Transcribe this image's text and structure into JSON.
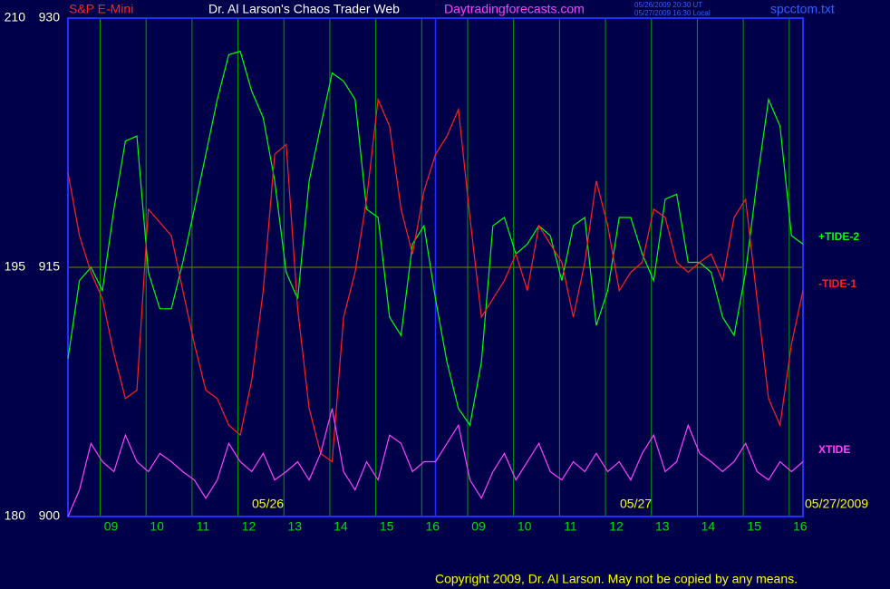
{
  "chart_data": {
    "type": "line",
    "instrument": "S&P E-Mini",
    "title": "Dr. Al Larson's Chaos Trader Web",
    "website": "Daytradingforecasts.com",
    "timestamps": [
      "05/26/2009 20:30 UT",
      "05/27/2009 16:30 Local"
    ],
    "filename": "spcctom.txt",
    "copyright": "Copyright 2009, Dr. Al Larson. May not be copied by any means.",
    "date_labels": [
      "05/26",
      "05/27",
      "05/27/2009"
    ],
    "x": [
      0,
      0.25,
      0.5,
      0.75,
      1,
      1.25,
      1.5,
      1.75,
      2,
      2.25,
      2.5,
      2.75,
      3,
      3.25,
      3.5,
      3.75,
      4,
      4.25,
      4.5,
      4.75,
      5,
      5.25,
      5.5,
      5.75,
      6,
      6.25,
      6.5,
      6.75,
      7,
      7.25,
      7.5,
      7.75,
      8,
      8.25,
      8.5,
      8.75,
      9,
      9.25,
      9.5,
      9.75,
      10,
      10.25,
      10.5,
      10.75,
      11,
      11.25,
      11.5,
      11.75,
      12,
      12.25,
      12.5,
      12.75,
      13,
      13.25,
      13.5,
      13.75,
      14,
      14.25,
      14.5,
      14.75,
      15,
      15.25,
      15.5,
      15.75,
      16
    ],
    "xlim": [
      0,
      16
    ],
    "xticks": [
      {
        "value": 0.7,
        "label": "09"
      },
      {
        "value": 1.7,
        "label": "10"
      },
      {
        "value": 2.7,
        "label": "11"
      },
      {
        "value": 3.7,
        "label": "12"
      },
      {
        "value": 4.7,
        "label": "13"
      },
      {
        "value": 5.7,
        "label": "14"
      },
      {
        "value": 6.7,
        "label": "15"
      },
      {
        "value": 7.7,
        "label": "16"
      },
      {
        "value": 8.7,
        "label": "09"
      },
      {
        "value": 9.7,
        "label": "10"
      },
      {
        "value": 10.7,
        "label": "11"
      },
      {
        "value": 11.7,
        "label": "12"
      },
      {
        "value": 12.7,
        "label": "13"
      },
      {
        "value": 13.7,
        "label": "14"
      },
      {
        "value": 14.7,
        "label": "15"
      },
      {
        "value": 15.7,
        "label": "16"
      }
    ],
    "ylim": [
      180,
      210
    ],
    "yticks": [
      180,
      195,
      210
    ],
    "y2lim": [
      900,
      930
    ],
    "y2ticks": [
      900,
      915,
      930
    ],
    "series": [
      {
        "name": "+TIDE-2",
        "color": "#00ff00",
        "values": [
          189.5,
          194.2,
          195.0,
          193.6,
          198.5,
          202.6,
          202.9,
          194.7,
          192.5,
          192.5,
          195.3,
          198.5,
          201.8,
          205.1,
          207.8,
          208.0,
          205.6,
          204.0,
          200.2,
          194.7,
          193.1,
          200.2,
          203.5,
          206.7,
          206.2,
          205.1,
          198.5,
          198.0,
          192.0,
          190.9,
          196.4,
          197.5,
          193.1,
          189.3,
          186.5,
          185.5,
          189.3,
          197.5,
          198.0,
          195.8,
          196.4,
          197.5,
          196.9,
          194.2,
          197.5,
          198.0,
          191.5,
          193.6,
          198.0,
          198.0,
          195.8,
          194.2,
          199.1,
          199.4,
          195.3,
          195.3,
          194.7,
          192.0,
          190.9,
          194.7,
          200.2,
          205.1,
          203.5,
          196.9,
          196.4
        ]
      },
      {
        "name": "-TIDE-1",
        "color": "#ff2020",
        "values": [
          200.7,
          196.9,
          194.7,
          193.1,
          189.8,
          187.1,
          187.6,
          198.5,
          197.7,
          196.9,
          193.6,
          190.4,
          187.6,
          187.1,
          185.5,
          184.9,
          188.2,
          193.6,
          201.8,
          202.4,
          192.5,
          186.5,
          183.8,
          183.3,
          192.0,
          194.7,
          199.1,
          205.1,
          203.5,
          198.5,
          195.8,
          199.6,
          201.8,
          202.9,
          204.5,
          198.0,
          192.0,
          193.1,
          194.2,
          195.8,
          193.6,
          197.5,
          196.4,
          195.3,
          192.0,
          195.3,
          200.2,
          197.5,
          193.6,
          194.7,
          195.3,
          198.5,
          198.0,
          195.3,
          194.7,
          195.3,
          195.8,
          194.2,
          198.0,
          199.1,
          193.1,
          187.1,
          185.5,
          190.4,
          193.6
        ]
      },
      {
        "name": "XTIDE",
        "color": "#ff40ff",
        "values": [
          180.0,
          181.6,
          184.4,
          183.3,
          182.7,
          184.9,
          183.3,
          182.7,
          183.8,
          183.3,
          182.7,
          182.2,
          181.1,
          182.2,
          184.4,
          183.3,
          182.7,
          183.8,
          182.2,
          182.7,
          183.3,
          182.2,
          183.8,
          186.5,
          182.7,
          181.6,
          183.3,
          182.2,
          184.9,
          184.4,
          182.7,
          183.3,
          183.3,
          184.4,
          185.5,
          182.2,
          181.1,
          182.7,
          183.8,
          182.2,
          183.3,
          184.4,
          182.7,
          182.2,
          183.3,
          182.7,
          183.8,
          182.7,
          183.3,
          182.2,
          183.8,
          184.9,
          182.7,
          183.3,
          185.5,
          183.8,
          183.3,
          182.7,
          183.3,
          184.4,
          182.7,
          182.2,
          183.3,
          182.7,
          183.3
        ]
      }
    ]
  }
}
